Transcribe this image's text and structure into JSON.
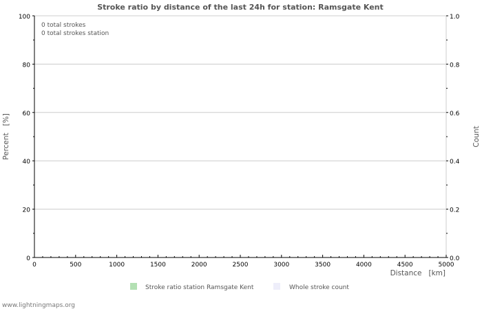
{
  "chart_data": {
    "type": "bar",
    "title": "Stroke ratio by distance of the last 24h for station: Ramsgate Kent",
    "xlabel": "Distance   [km]",
    "ylabel": "Percent   [%]",
    "y2label": "Count",
    "xlim": [
      0,
      5000
    ],
    "ylim": [
      0,
      100
    ],
    "y2lim": [
      0,
      1
    ],
    "xticks": [
      "0",
      "500",
      "1000",
      "1500",
      "2000",
      "2500",
      "3000",
      "3500",
      "4000",
      "4500",
      "5000"
    ],
    "yticks": [
      "0",
      "20",
      "40",
      "60",
      "80",
      "100"
    ],
    "y2ticks": [
      "0.0",
      "0.2",
      "0.4",
      "0.6",
      "0.8",
      "1.0"
    ],
    "grid": true,
    "series": [
      {
        "name": "Stroke ratio station Ramsgate Kent",
        "color": "#b3e0b3",
        "values": []
      },
      {
        "name": "Whole stroke count",
        "color": "#eeeefa",
        "values": []
      }
    ],
    "annotations": [
      "0 total strokes",
      "0 total strokes station"
    ],
    "legend_placement": "bottom"
  },
  "footer": "www.lightningmaps.org"
}
